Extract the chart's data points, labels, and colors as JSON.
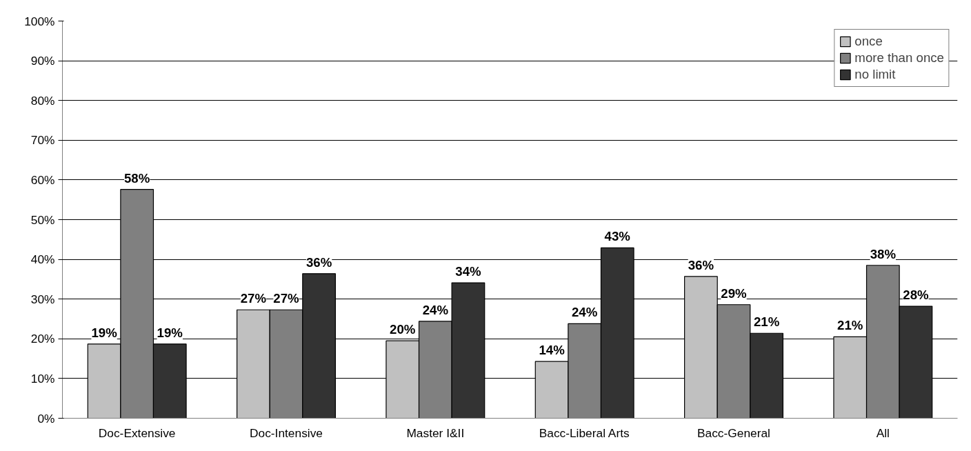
{
  "chart_data": {
    "type": "bar",
    "categories": [
      "Doc-Extensive",
      "Doc-Intensive",
      "Master I&II",
      "Bacc-Liberal Arts",
      "Bacc-General",
      "All"
    ],
    "series": [
      {
        "name": "once",
        "color": "#c0c0c0",
        "values": [
          18.7,
          27.3,
          19.5,
          14.3,
          35.7,
          20.5
        ],
        "value_labels": [
          "19%",
          "27%",
          "20%",
          "14%",
          "36%",
          "21%"
        ]
      },
      {
        "name": "more than once",
        "color": "#808080",
        "values": [
          57.6,
          27.3,
          24.4,
          23.8,
          28.6,
          38.5
        ],
        "value_labels": [
          "58%",
          "27%",
          "24%",
          "24%",
          "29%",
          "38%"
        ]
      },
      {
        "name": "no limit",
        "color": "#333333",
        "values": [
          18.7,
          36.4,
          34.1,
          42.9,
          21.4,
          28.2
        ],
        "value_labels": [
          "19%",
          "36%",
          "34%",
          "43%",
          "21%",
          "28%"
        ]
      }
    ],
    "ylim": [
      0,
      100
    ],
    "yticks": [
      {
        "value": 0,
        "label": "0%"
      },
      {
        "value": 10,
        "label": "10%"
      },
      {
        "value": 20,
        "label": "20%"
      },
      {
        "value": 30,
        "label": "30%"
      },
      {
        "value": 40,
        "label": "40%"
      },
      {
        "value": 50,
        "label": "50%"
      },
      {
        "value": 60,
        "label": "60%"
      },
      {
        "value": 70,
        "label": "70%"
      },
      {
        "value": 80,
        "label": "80%"
      },
      {
        "value": 90,
        "label": "90%"
      },
      {
        "value": 100,
        "label": "100%"
      }
    ],
    "grid": "y",
    "legend": "top right"
  }
}
